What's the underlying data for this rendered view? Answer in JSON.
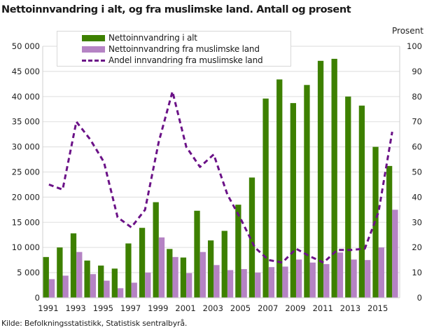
{
  "title": "Nettoinnvandring i alt, og fra muslimske land. Antall og prosent",
  "source": "Kilde: Befolkningsstatistikk, Statistisk sentralbyrå.",
  "right_axis_title": "Prosent",
  "colors": {
    "total": "#3d8000",
    "muslim": "#b583c4",
    "share_line": "#6b1287",
    "grid": "#e2e2e2",
    "axis": "#cfcfcf"
  },
  "legend": [
    {
      "label": "Nettoinnvandring i alt",
      "type": "bar",
      "color": "#3d8000"
    },
    {
      "label": "Nettoinnvandring fra muslimske land",
      "type": "bar",
      "color": "#b583c4"
    },
    {
      "label": "Andel innvandring fra muslimske land",
      "type": "dashed-line",
      "color": "#6b1287"
    }
  ],
  "chart_data": {
    "type": "bar",
    "title": "Nettoinnvandring i alt, og fra muslimske land. Antall og prosent",
    "xlabel": "",
    "ylabel": "",
    "y2label": "Prosent",
    "ylim": [
      0,
      50000
    ],
    "y2lim": [
      0,
      100
    ],
    "yticks": [
      "0",
      "5 000",
      "10 000",
      "15 000",
      "20 000",
      "25 000",
      "30 000",
      "35 000",
      "40 000",
      "45 000",
      "50 000"
    ],
    "y2ticks": [
      "0",
      "10",
      "20",
      "30",
      "40",
      "50",
      "60",
      "70",
      "80",
      "90",
      "100"
    ],
    "xtick_labels": [
      "1991",
      "1993",
      "1995",
      "1997",
      "1999",
      "2001",
      "2003",
      "2005",
      "2007",
      "2009",
      "2011",
      "2013",
      "2015"
    ],
    "grid": true,
    "legend_position": "top-left inside",
    "categories": [
      "1991",
      "1992",
      "1993",
      "1994",
      "1995",
      "1996",
      "1997",
      "1998",
      "1999",
      "2000",
      "2001",
      "2002",
      "2003",
      "2004",
      "2005",
      "2006",
      "2007",
      "2008",
      "2009",
      "2010",
      "2011",
      "2012",
      "2013",
      "2014",
      "2015",
      "2016"
    ],
    "series": [
      {
        "name": "Nettoinnvandring i alt",
        "type": "bar",
        "axis": "left",
        "values": [
          8100,
          10000,
          12800,
          7400,
          6400,
          5800,
          10800,
          13900,
          19000,
          9700,
          8000,
          17300,
          11400,
          13300,
          18500,
          23900,
          39600,
          43400,
          38700,
          42300,
          47100,
          47500,
          40000,
          38200,
          30000,
          26200
        ]
      },
      {
        "name": "Nettoinnvandring fra muslimske land",
        "type": "bar",
        "axis": "left",
        "values": [
          3700,
          4400,
          9100,
          4700,
          3400,
          1900,
          3000,
          5000,
          12000,
          8100,
          4900,
          9100,
          6500,
          5500,
          5700,
          5000,
          6100,
          6200,
          7600,
          7000,
          6700,
          9000,
          7600,
          7500,
          10000,
          17500
        ]
      },
      {
        "name": "Andel innvandring fra muslimske land",
        "type": "line",
        "style": "dashed",
        "axis": "right",
        "values": [
          45,
          43,
          70,
          63,
          54,
          32,
          28,
          35,
          62,
          82,
          60,
          52,
          57,
          41,
          31,
          20,
          15,
          14,
          19.5,
          16.5,
          14,
          19,
          19,
          19.5,
          34,
          66
        ]
      }
    ]
  }
}
